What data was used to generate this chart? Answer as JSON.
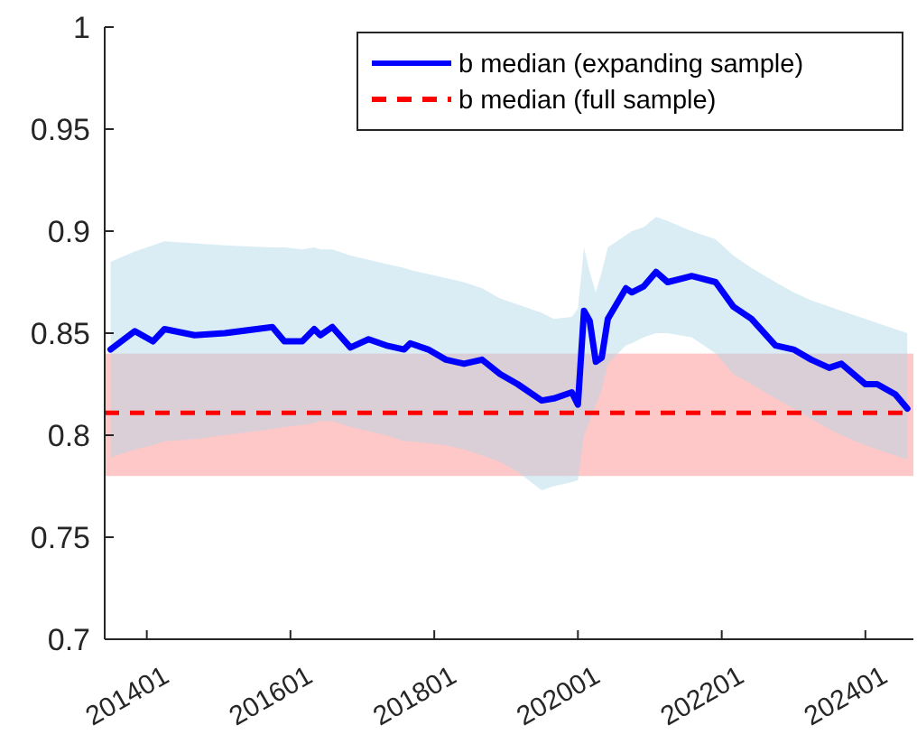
{
  "chart_data": {
    "type": "line",
    "x": [
      "2013-07",
      "2013-11",
      "2014-02",
      "2014-04",
      "2014-09",
      "2015-02",
      "2015-10",
      "2015-12",
      "2016-03",
      "2016-05",
      "2016-06",
      "2016-08",
      "2016-11",
      "2017-02",
      "2017-05",
      "2017-08",
      "2017-09",
      "2017-12",
      "2018-03",
      "2018-06",
      "2018-09",
      "2018-12",
      "2019-03",
      "2019-07",
      "2019-09",
      "2019-12",
      "2020-01",
      "2020-02",
      "2020-03",
      "2020-04",
      "2020-05",
      "2020-06",
      "2020-09",
      "2020-10",
      "2020-12",
      "2021-02",
      "2021-04",
      "2021-08",
      "2021-12",
      "2022-03",
      "2022-06",
      "2022-10",
      "2023-01",
      "2023-04",
      "2023-07",
      "2023-09",
      "2024-01",
      "2024-03",
      "2024-06",
      "2024-08"
    ],
    "series": [
      {
        "name": "b median (expanding sample)",
        "color": "#0000ff",
        "values": [
          0.842,
          0.851,
          0.846,
          0.852,
          0.849,
          0.85,
          0.853,
          0.846,
          0.846,
          0.852,
          0.849,
          0.853,
          0.843,
          0.847,
          0.844,
          0.842,
          0.845,
          0.842,
          0.837,
          0.835,
          0.837,
          0.83,
          0.825,
          0.817,
          0.818,
          0.821,
          0.815,
          0.861,
          0.856,
          0.836,
          0.838,
          0.857,
          0.872,
          0.87,
          0.873,
          0.88,
          0.875,
          0.878,
          0.875,
          0.863,
          0.857,
          0.844,
          0.842,
          0.837,
          0.833,
          0.835,
          0.825,
          0.825,
          0.82,
          0.813
        ],
        "lower": [
          0.789,
          0.793,
          0.795,
          0.797,
          0.798,
          0.8,
          0.803,
          0.804,
          0.805,
          0.806,
          0.807,
          0.807,
          0.804,
          0.802,
          0.8,
          0.797,
          0.797,
          0.796,
          0.795,
          0.793,
          0.79,
          0.787,
          0.782,
          0.773,
          0.775,
          0.777,
          0.778,
          0.8,
          0.807,
          0.815,
          0.822,
          0.835,
          0.844,
          0.845,
          0.848,
          0.85,
          0.85,
          0.848,
          0.84,
          0.83,
          0.825,
          0.818,
          0.813,
          0.808,
          0.803,
          0.8,
          0.795,
          0.793,
          0.79,
          0.788
        ],
        "upper": [
          0.885,
          0.89,
          0.893,
          0.895,
          0.894,
          0.893,
          0.892,
          0.892,
          0.891,
          0.892,
          0.891,
          0.891,
          0.888,
          0.886,
          0.884,
          0.882,
          0.881,
          0.879,
          0.877,
          0.875,
          0.872,
          0.867,
          0.864,
          0.86,
          0.857,
          0.858,
          0.862,
          0.892,
          0.88,
          0.87,
          0.88,
          0.892,
          0.898,
          0.9,
          0.902,
          0.907,
          0.905,
          0.9,
          0.896,
          0.888,
          0.882,
          0.875,
          0.87,
          0.866,
          0.863,
          0.861,
          0.857,
          0.855,
          0.852,
          0.85
        ]
      }
    ],
    "ref_lines": [
      {
        "axis": "y",
        "value": 0.811,
        "label": "b median (full sample)",
        "color": "#ff0000",
        "line_style": "dashed"
      }
    ],
    "bands": [
      {
        "axis": "y",
        "from": 0.78,
        "to": 0.84,
        "color": "#ffc8c8"
      }
    ],
    "xlim": [
      "2013-06",
      "2024-09"
    ],
    "xticks": [
      {
        "value": "2014-01",
        "label": "201401"
      },
      {
        "value": "2016-01",
        "label": "201601"
      },
      {
        "value": "2018-01",
        "label": "201801"
      },
      {
        "value": "2020-01",
        "label": "202001"
      },
      {
        "value": "2022-01",
        "label": "202201"
      },
      {
        "value": "2024-01",
        "label": "202401"
      }
    ],
    "ylim": [
      0.7,
      1
    ],
    "yticks": [
      0.7,
      0.75,
      0.8,
      0.85,
      0.9,
      0.95,
      1
    ],
    "legend": "top right",
    "grid": false,
    "line_style": "solid",
    "marker": "none"
  }
}
